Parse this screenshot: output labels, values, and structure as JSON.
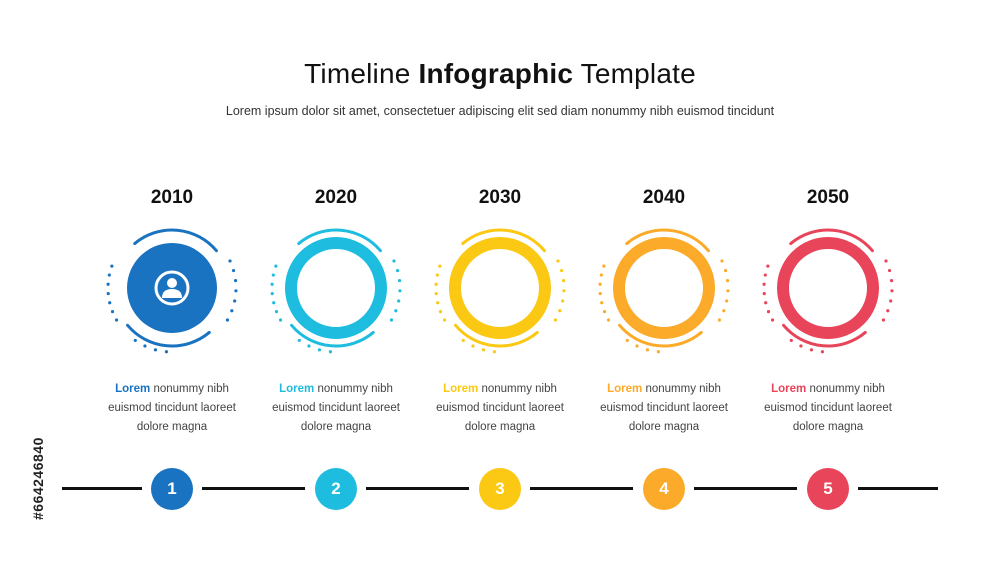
{
  "header": {
    "title_part1": "Timeline",
    "title_part2": "Infographic",
    "title_part3": "Template",
    "subtitle": "Lorem ipsum dolor sit amet, consectetuer adipiscing elit sed diam nonummy nibh euismod tincidunt"
  },
  "timeline": [
    {
      "year": "2010",
      "lead": "Lorem",
      "line1": "nonummy nibh",
      "line2": "euismod tincidunt laoreet",
      "line3": "dolore magna",
      "step": "1",
      "color": "#1a73c1",
      "icon": "user-icon"
    },
    {
      "year": "2020",
      "lead": "Lorem",
      "line1": "nonummy nibh",
      "line2": "euismod tincidunt laoreet",
      "line3": "dolore magna",
      "step": "2",
      "color": "#1ebde0",
      "icon": ""
    },
    {
      "year": "2030",
      "lead": "Lorem",
      "line1": "nonummy nibh",
      "line2": "euismod tincidunt laoreet",
      "line3": "dolore magna",
      "step": "3",
      "color": "#fbc814",
      "icon": ""
    },
    {
      "year": "2040",
      "lead": "Lorem",
      "line1": "nonummy nibh",
      "line2": "euismod tincidunt laoreet",
      "line3": "dolore magna",
      "step": "4",
      "color": "#fbab29",
      "icon": ""
    },
    {
      "year": "2050",
      "lead": "Lorem",
      "line1": "nonummy nibh",
      "line2": "euismod tincidunt laoreet",
      "line3": "dolore magna",
      "step": "5",
      "color": "#e8445a",
      "icon": ""
    }
  ],
  "stock_id": "#664246840"
}
